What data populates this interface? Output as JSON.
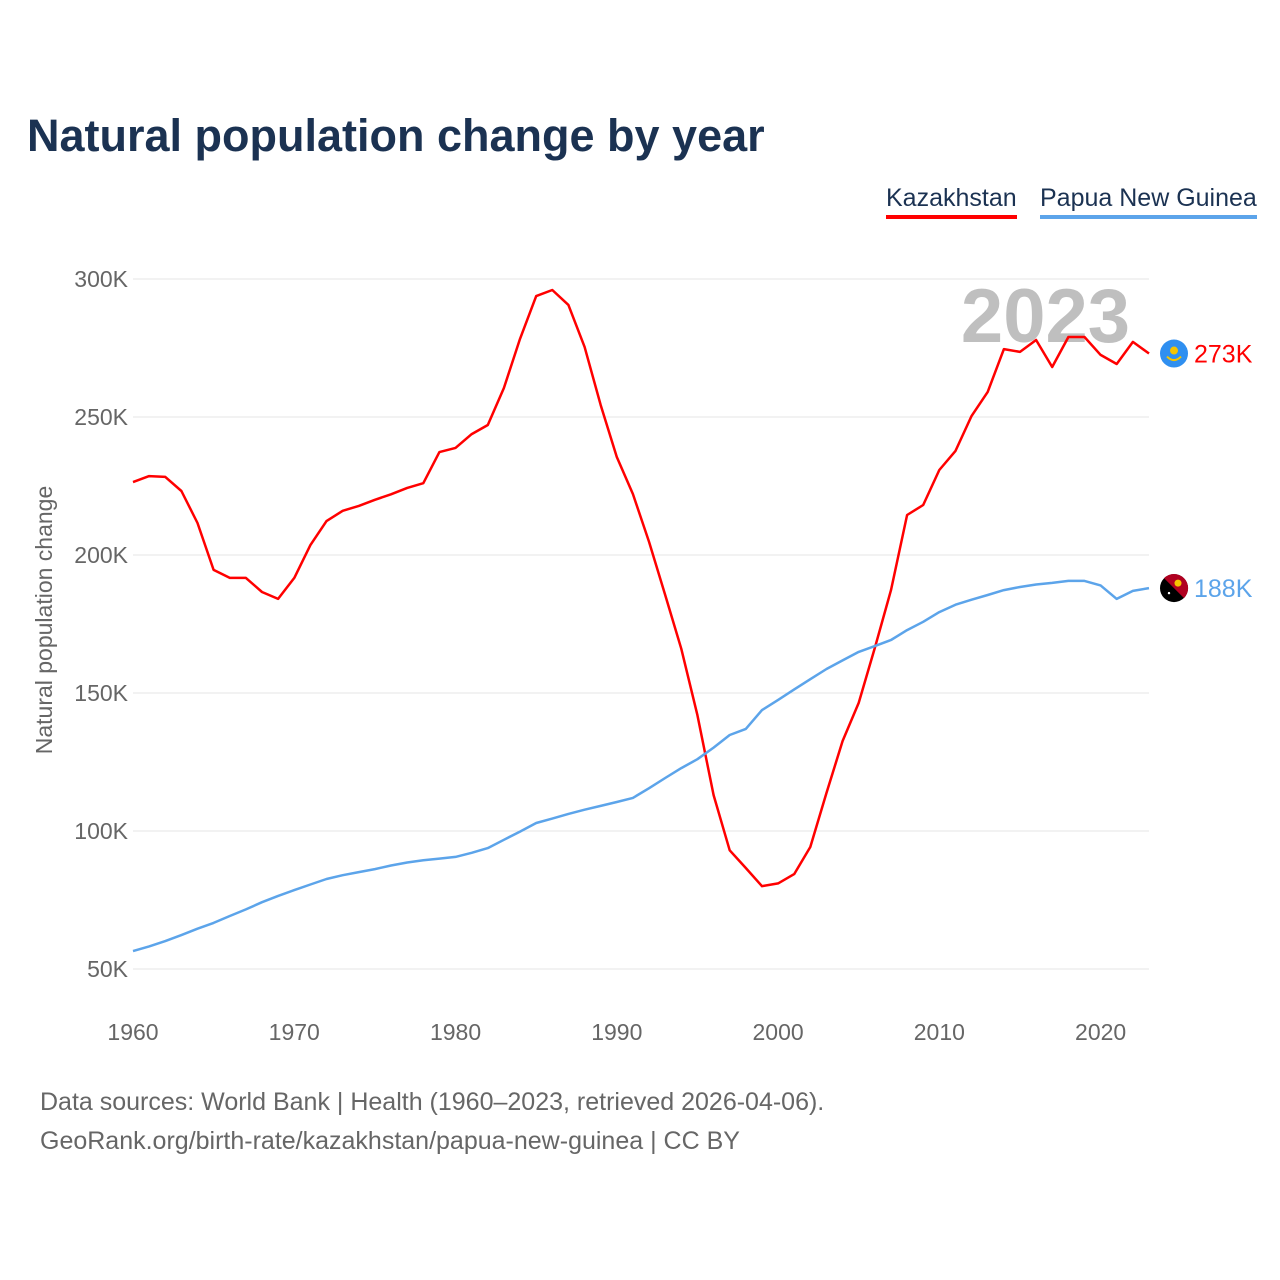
{
  "title": "Natural population change by year",
  "footer": {
    "line1": "Data sources: World Bank | Health (1960–2023, retrieved 2026-04-06).",
    "line2": "GeoRank.org/birth-rate/kazakhstan/papua-new-guinea | CC BY"
  },
  "chart_data": {
    "type": "line",
    "title": "Natural population change by year",
    "xlabel": "",
    "ylabel": "Natural population change",
    "xlim": [
      1960,
      2023
    ],
    "ylim": [
      50000,
      300000
    ],
    "x_ticks": [
      1960,
      1970,
      1980,
      1990,
      2000,
      2010,
      2020
    ],
    "x_tick_labels": [
      "1960",
      "1970",
      "1980",
      "1990",
      "2000",
      "2010",
      "2020"
    ],
    "y_ticks": [
      50000,
      100000,
      150000,
      200000,
      250000,
      300000
    ],
    "y_tick_labels": [
      "50K",
      "100K",
      "150K",
      "200K",
      "250K",
      "300K"
    ],
    "grid": true,
    "legend_position": "top-right",
    "year_label": "2023",
    "x": [
      1960,
      1961,
      1962,
      1963,
      1964,
      1965,
      1966,
      1967,
      1968,
      1969,
      1970,
      1971,
      1972,
      1973,
      1974,
      1975,
      1976,
      1977,
      1978,
      1979,
      1980,
      1981,
      1982,
      1983,
      1984,
      1985,
      1986,
      1987,
      1988,
      1989,
      1990,
      1991,
      1992,
      1993,
      1994,
      1995,
      1996,
      1997,
      1998,
      1999,
      2000,
      2001,
      2002,
      2003,
      2004,
      2005,
      2006,
      2007,
      2008,
      2009,
      2010,
      2011,
      2012,
      2013,
      2014,
      2015,
      2016,
      2017,
      2018,
      2019,
      2020,
      2021,
      2022,
      2023
    ],
    "series": [
      {
        "name": "Kazakhstan",
        "color": "#ff0000",
        "end_label": "273K",
        "flag": "kazakhstan-flag",
        "values": [
          226400,
          228600,
          228300,
          223200,
          211600,
          194600,
          191700,
          191700,
          186600,
          184100,
          191700,
          203600,
          212300,
          216000,
          217800,
          220000,
          222000,
          224300,
          226000,
          237300,
          238800,
          243800,
          247100,
          260500,
          278300,
          293800,
          296000,
          290600,
          275400,
          254300,
          235500,
          222100,
          204700,
          185500,
          166000,
          142000,
          113000,
          93000,
          86600,
          80000,
          81000,
          84400,
          94200,
          113800,
          132600,
          146400,
          166300,
          187300,
          214500,
          218100,
          230800,
          237700,
          250400,
          259100,
          274600,
          273600,
          277900,
          268100,
          279000,
          279000,
          272500,
          269200,
          277200,
          273000
        ]
      },
      {
        "name": "Papua New Guinea",
        "color": "#5ca4ea",
        "end_label": "188K",
        "flag": "papua-new-guinea-flag",
        "values": [
          56500,
          58200,
          60100,
          62300,
          64600,
          66700,
          69200,
          71600,
          74200,
          76500,
          78600,
          80600,
          82600,
          84000,
          85100,
          86200,
          87500,
          88600,
          89400,
          90000,
          90600,
          92100,
          93800,
          96800,
          99800,
          102900,
          104500,
          106200,
          107700,
          109100,
          110500,
          112000,
          115500,
          119200,
          122800,
          126000,
          130200,
          134800,
          137000,
          143800,
          147500,
          151300,
          155000,
          158700,
          161800,
          164900,
          167000,
          169200,
          172800,
          175800,
          179300,
          182000,
          183800,
          185500,
          187300,
          188400,
          189300,
          189900,
          190600,
          190600,
          189000,
          184100,
          187000,
          188000
        ]
      }
    ]
  }
}
